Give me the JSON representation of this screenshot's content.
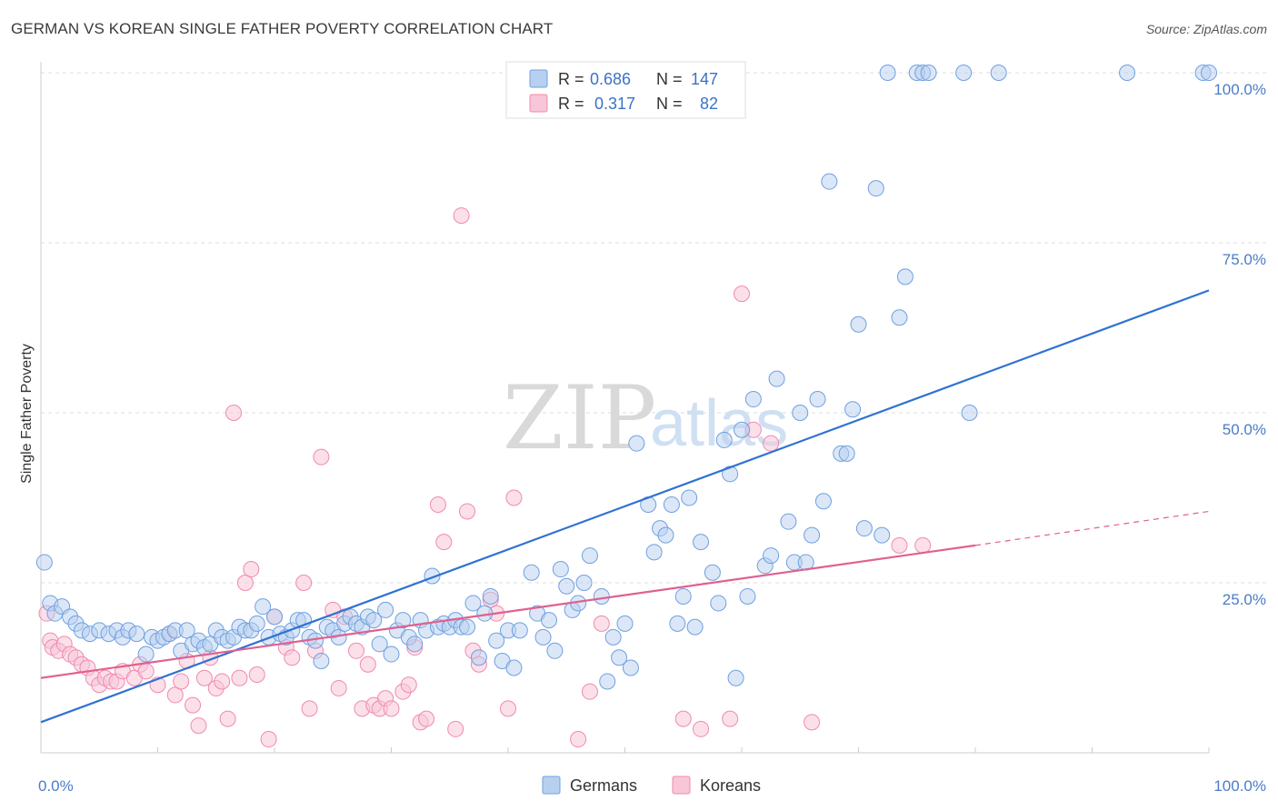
{
  "title": "GERMAN VS KOREAN SINGLE FATHER POVERTY CORRELATION CHART",
  "source": "Source: ZipAtlas.com",
  "watermark": {
    "zip": "ZIP",
    "atlas": "atlas"
  },
  "legend": {
    "r_label": "R =",
    "n_label": "N =",
    "rows": [
      {
        "r": "0.686",
        "n": "147"
      },
      {
        "r": "0.317",
        "n": "82"
      }
    ]
  },
  "colors": {
    "germans": "#6fa0e0",
    "germans_fill": "#b8d0f0",
    "germans_line": "#2f72d2",
    "koreans": "#f08aae",
    "koreans_fill": "#f8c6d8",
    "koreans_line": "#e0608f",
    "axis_tick": "#4a7cc7",
    "grid": "#dddddd"
  },
  "chart_data": {
    "type": "scatter",
    "title": "GERMAN VS KOREAN SINGLE FATHER POVERTY CORRELATION CHART",
    "xlabel": "",
    "ylabel": "Single Father Poverty",
    "xlim": [
      0,
      100
    ],
    "ylim": [
      0,
      100
    ],
    "x_tick_labels": [
      "0.0%",
      "100.0%"
    ],
    "y_tick_labels": [
      "25.0%",
      "50.0%",
      "75.0%",
      "100.0%"
    ],
    "y_ticks": [
      25,
      50,
      75,
      100
    ],
    "grid": "horizontal dashed",
    "legend_position": "top-center",
    "series": [
      {
        "name": "Germans",
        "r": 0.686,
        "n": 147,
        "trend": {
          "x": [
            0,
            100
          ],
          "y": [
            4.5,
            68
          ]
        },
        "points": [
          [
            0.3,
            28
          ],
          [
            0.8,
            22
          ],
          [
            1.2,
            20.5
          ],
          [
            1.8,
            21.5
          ],
          [
            2.5,
            20
          ],
          [
            3,
            19
          ],
          [
            3.5,
            18
          ],
          [
            4.2,
            17.5
          ],
          [
            5,
            18
          ],
          [
            5.8,
            17.5
          ],
          [
            6.5,
            18
          ],
          [
            7,
            17
          ],
          [
            7.5,
            18
          ],
          [
            8.2,
            17.5
          ],
          [
            9,
            14.5
          ],
          [
            9.5,
            17
          ],
          [
            10,
            16.5
          ],
          [
            10.5,
            17
          ],
          [
            11,
            17.5
          ],
          [
            11.5,
            18
          ],
          [
            12,
            15
          ],
          [
            12.5,
            18
          ],
          [
            13,
            16
          ],
          [
            13.5,
            16.5
          ],
          [
            14,
            15.5
          ],
          [
            14.5,
            16
          ],
          [
            15,
            18
          ],
          [
            15.5,
            17
          ],
          [
            16,
            16.5
          ],
          [
            16.5,
            17
          ],
          [
            17,
            18.5
          ],
          [
            17.5,
            18
          ],
          [
            18,
            18
          ],
          [
            18.5,
            19
          ],
          [
            19,
            21.5
          ],
          [
            19.5,
            17
          ],
          [
            20,
            20
          ],
          [
            20.5,
            17.5
          ],
          [
            21,
            17
          ],
          [
            21.5,
            18
          ],
          [
            22,
            19.5
          ],
          [
            22.5,
            19.5
          ],
          [
            23,
            17
          ],
          [
            23.5,
            16.5
          ],
          [
            24,
            13.5
          ],
          [
            24.5,
            18.5
          ],
          [
            25,
            18
          ],
          [
            25.5,
            17
          ],
          [
            26,
            19
          ],
          [
            26.5,
            20
          ],
          [
            27,
            19
          ],
          [
            27.5,
            18.5
          ],
          [
            28,
            20
          ],
          [
            28.5,
            19.5
          ],
          [
            29,
            16
          ],
          [
            29.5,
            21
          ],
          [
            30,
            14.5
          ],
          [
            30.5,
            18
          ],
          [
            31,
            19.5
          ],
          [
            31.5,
            17
          ],
          [
            32,
            16
          ],
          [
            32.5,
            19.5
          ],
          [
            33,
            18
          ],
          [
            33.5,
            26
          ],
          [
            34,
            18.5
          ],
          [
            34.5,
            19
          ],
          [
            35,
            18.5
          ],
          [
            35.5,
            19.5
          ],
          [
            36,
            18.5
          ],
          [
            36.5,
            18.5
          ],
          [
            37,
            22
          ],
          [
            37.5,
            14
          ],
          [
            38,
            20.5
          ],
          [
            38.5,
            23
          ],
          [
            39,
            16.5
          ],
          [
            39.5,
            13.5
          ],
          [
            40,
            18
          ],
          [
            40.5,
            12.5
          ],
          [
            41,
            18
          ],
          [
            42,
            26.5
          ],
          [
            42.5,
            20.5
          ],
          [
            43,
            17
          ],
          [
            43.5,
            19.5
          ],
          [
            44,
            15
          ],
          [
            44.5,
            27
          ],
          [
            45,
            24.5
          ],
          [
            45.5,
            21
          ],
          [
            46,
            22
          ],
          [
            46.5,
            25
          ],
          [
            47,
            29
          ],
          [
            48,
            23
          ],
          [
            48.5,
            10.5
          ],
          [
            49,
            17
          ],
          [
            49.5,
            14
          ],
          [
            50,
            19
          ],
          [
            50.5,
            12.5
          ],
          [
            51,
            45.5
          ],
          [
            52,
            36.5
          ],
          [
            52.5,
            29.5
          ],
          [
            53,
            33
          ],
          [
            53.5,
            32
          ],
          [
            54,
            36.5
          ],
          [
            54.5,
            19
          ],
          [
            55,
            23
          ],
          [
            55.5,
            37.5
          ],
          [
            56,
            18.5
          ],
          [
            56.5,
            31
          ],
          [
            57.5,
            26.5
          ],
          [
            58,
            22
          ],
          [
            58.5,
            46
          ],
          [
            59,
            41
          ],
          [
            59.5,
            11
          ],
          [
            60,
            47.5
          ],
          [
            60.5,
            23
          ],
          [
            61,
            52
          ],
          [
            62,
            27.5
          ],
          [
            62.5,
            29
          ],
          [
            63,
            55
          ],
          [
            64,
            34
          ],
          [
            64.5,
            28
          ],
          [
            65,
            50
          ],
          [
            65.5,
            28
          ],
          [
            66,
            32
          ],
          [
            66.5,
            52
          ],
          [
            67,
            37
          ],
          [
            67.5,
            84
          ],
          [
            68.5,
            44
          ],
          [
            69,
            44
          ],
          [
            69.5,
            50.5
          ],
          [
            70,
            63
          ],
          [
            70.5,
            33
          ],
          [
            71.5,
            83
          ],
          [
            72,
            32
          ],
          [
            72.5,
            100
          ],
          [
            73.5,
            64
          ],
          [
            74,
            70
          ],
          [
            75,
            100
          ],
          [
            75.5,
            100
          ],
          [
            76,
            100
          ],
          [
            79,
            100
          ],
          [
            79.5,
            50
          ],
          [
            82,
            100
          ],
          [
            93,
            100
          ],
          [
            99.5,
            100
          ],
          [
            100,
            100
          ]
        ]
      },
      {
        "name": "Koreans",
        "r": 0.317,
        "n": 82,
        "trend": {
          "x": [
            0,
            80
          ],
          "y": [
            11,
            30.5
          ]
        },
        "trend_extension": {
          "x": [
            80,
            100
          ],
          "y": [
            30.5,
            35.5
          ]
        },
        "points": [
          [
            0.5,
            20.5
          ],
          [
            0.8,
            16.5
          ],
          [
            1,
            15.5
          ],
          [
            1.5,
            15
          ],
          [
            2,
            16
          ],
          [
            2.5,
            14.5
          ],
          [
            3,
            14
          ],
          [
            3.5,
            13
          ],
          [
            4,
            12.5
          ],
          [
            4.5,
            11
          ],
          [
            5,
            10
          ],
          [
            5.5,
            11
          ],
          [
            6,
            10.5
          ],
          [
            6.5,
            10.5
          ],
          [
            7,
            12
          ],
          [
            8,
            11
          ],
          [
            8.5,
            13
          ],
          [
            9,
            12
          ],
          [
            10,
            10
          ],
          [
            11,
            17.5
          ],
          [
            11.5,
            8.5
          ],
          [
            12,
            10.5
          ],
          [
            12.5,
            13.5
          ],
          [
            13,
            7
          ],
          [
            13.5,
            4
          ],
          [
            14,
            11
          ],
          [
            14.5,
            14
          ],
          [
            15,
            9.5
          ],
          [
            15.5,
            10.5
          ],
          [
            16,
            5
          ],
          [
            16.5,
            50
          ],
          [
            17,
            11
          ],
          [
            17.5,
            25
          ],
          [
            18,
            27
          ],
          [
            18.5,
            11.5
          ],
          [
            19.5,
            2
          ],
          [
            20,
            20
          ],
          [
            21,
            15.5
          ],
          [
            21.5,
            14
          ],
          [
            22.5,
            25
          ],
          [
            23,
            6.5
          ],
          [
            23.5,
            15
          ],
          [
            24,
            43.5
          ],
          [
            25,
            21
          ],
          [
            25.5,
            9.5
          ],
          [
            26,
            20
          ],
          [
            27,
            15
          ],
          [
            27.5,
            6.5
          ],
          [
            28,
            13
          ],
          [
            28.5,
            7
          ],
          [
            29,
            6.5
          ],
          [
            29.5,
            8
          ],
          [
            30,
            6.5
          ],
          [
            31,
            9
          ],
          [
            31.5,
            10
          ],
          [
            32,
            15.5
          ],
          [
            32.5,
            4.5
          ],
          [
            33,
            5
          ],
          [
            34,
            36.5
          ],
          [
            34.5,
            31
          ],
          [
            35.5,
            3.5
          ],
          [
            36,
            79
          ],
          [
            36.5,
            35.5
          ],
          [
            37,
            15
          ],
          [
            37.5,
            13
          ],
          [
            38.5,
            22.5
          ],
          [
            39,
            20.5
          ],
          [
            40,
            6.5
          ],
          [
            40.5,
            37.5
          ],
          [
            46,
            2
          ],
          [
            47,
            9
          ],
          [
            48,
            19
          ],
          [
            55,
            5
          ],
          [
            56.5,
            3.5
          ],
          [
            59,
            5
          ],
          [
            60,
            67.5
          ],
          [
            61,
            47.5
          ],
          [
            62.5,
            45.5
          ],
          [
            66,
            4.5
          ],
          [
            73.5,
            30.5
          ],
          [
            75.5,
            30.5
          ]
        ]
      }
    ]
  },
  "bottom_legend": [
    {
      "label": "Germans"
    },
    {
      "label": "Koreans"
    }
  ]
}
